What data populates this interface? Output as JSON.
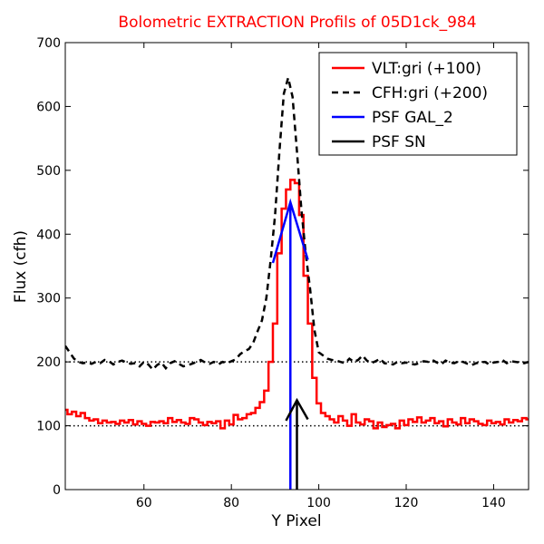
{
  "chart_data": {
    "type": "line",
    "title": "Bolometric EXTRACTION Profils of 05D1ck_984",
    "title_color": "#ff0000",
    "xlabel": "Y Pixel",
    "ylabel": "Flux (cfh)",
    "xlim": [
      42,
      148
    ],
    "ylim": [
      0,
      700
    ],
    "xticks": [
      60,
      80,
      100,
      120,
      140
    ],
    "yticks": [
      0,
      100,
      200,
      300,
      400,
      500,
      600,
      700
    ],
    "grid": false,
    "legend_position": "top-right",
    "reference_lines": [
      {
        "y": 100,
        "style": "dotted",
        "color": "#000000"
      },
      {
        "y": 200,
        "style": "dotted",
        "color": "#000000"
      }
    ],
    "series": [
      {
        "name": "VLT:gri (+100)",
        "color": "#ff0000",
        "style": "steps",
        "x": [
          42,
          43,
          44,
          45,
          46,
          47,
          48,
          49,
          50,
          51,
          52,
          53,
          54,
          55,
          56,
          57,
          58,
          59,
          60,
          61,
          62,
          63,
          64,
          65,
          66,
          67,
          68,
          69,
          70,
          71,
          72,
          73,
          74,
          75,
          76,
          77,
          78,
          79,
          80,
          81,
          82,
          83,
          84,
          85,
          86,
          87,
          88,
          89,
          90,
          91,
          92,
          93,
          94,
          95,
          96,
          97,
          98,
          99,
          100,
          101,
          102,
          103,
          104,
          105,
          106,
          107,
          108,
          109,
          110,
          111,
          112,
          113,
          114,
          115,
          116,
          117,
          118,
          119,
          120,
          121,
          122,
          123,
          124,
          125,
          126,
          127,
          128,
          129,
          130,
          131,
          132,
          133,
          134,
          135,
          136,
          137,
          138,
          139,
          140,
          141,
          142,
          143,
          144,
          145,
          146,
          147,
          148
        ],
        "y": [
          125,
          118,
          122,
          115,
          120,
          112,
          108,
          110,
          104,
          108,
          105,
          106,
          103,
          108,
          105,
          109,
          102,
          107,
          103,
          100,
          106,
          105,
          107,
          104,
          112,
          106,
          109,
          105,
          103,
          112,
          110,
          105,
          101,
          106,
          104,
          107,
          96,
          108,
          102,
          117,
          110,
          112,
          118,
          120,
          128,
          137,
          155,
          200,
          260,
          370,
          440,
          470,
          485,
          480,
          430,
          335,
          260,
          175,
          135,
          120,
          115,
          110,
          105,
          115,
          108,
          100,
          118,
          105,
          102,
          110,
          107,
          96,
          105,
          98,
          101,
          103,
          96,
          108,
          101,
          110,
          106,
          113,
          105,
          108,
          112,
          104,
          107,
          99,
          110,
          105,
          102,
          112,
          104,
          110,
          107,
          103,
          101,
          108,
          104,
          106,
          102,
          110,
          105,
          109,
          107,
          112,
          110
        ]
      },
      {
        "name": "CFH:gri (+200)",
        "color": "#000000",
        "style": "dashed",
        "x": [
          42,
          43,
          44,
          45,
          46,
          47,
          48,
          49,
          50,
          51,
          52,
          53,
          54,
          55,
          56,
          57,
          58,
          59,
          60,
          61,
          62,
          63,
          64,
          65,
          66,
          67,
          68,
          69,
          70,
          71,
          72,
          73,
          74,
          75,
          76,
          77,
          78,
          79,
          80,
          81,
          82,
          83,
          84,
          85,
          86,
          87,
          88,
          89,
          90,
          91,
          92,
          93,
          94,
          95,
          96,
          97,
          98,
          99,
          100,
          101,
          102,
          103,
          104,
          105,
          106,
          107,
          108,
          109,
          110,
          111,
          112,
          113,
          114,
          115,
          116,
          117,
          118,
          119,
          120,
          121,
          122,
          123,
          124,
          125,
          126,
          127,
          128,
          129,
          130,
          131,
          132,
          133,
          134,
          135,
          136,
          137,
          138,
          139,
          140,
          141,
          142,
          143,
          144,
          145,
          146,
          147,
          148
        ],
        "y": [
          225,
          215,
          205,
          200,
          198,
          199,
          197,
          200,
          198,
          203,
          201,
          196,
          200,
          202,
          199,
          197,
          198,
          193,
          200,
          196,
          188,
          195,
          199,
          190,
          198,
          201,
          197,
          193,
          195,
          197,
          200,
          203,
          199,
          197,
          200,
          196,
          200,
          198,
          201,
          204,
          212,
          217,
          220,
          230,
          248,
          265,
          300,
          360,
          430,
          530,
          620,
          645,
          615,
          530,
          440,
          370,
          315,
          250,
          215,
          210,
          205,
          203,
          202,
          200,
          198,
          205,
          200,
          203,
          210,
          202,
          198,
          201,
          205,
          198,
          197,
          196,
          200,
          198,
          199,
          197,
          196,
          198,
          201,
          200,
          203,
          199,
          196,
          202,
          199,
          198,
          201,
          200,
          197,
          195,
          198,
          199,
          200,
          196,
          199,
          200,
          203,
          198,
          201,
          200,
          199,
          198,
          200
        ]
      },
      {
        "name": "PSF GAL_2",
        "color": "#0000ff",
        "style": "solid",
        "x": [
          89.5,
          93.5,
          97.5
        ],
        "y": [
          355,
          450,
          360
        ],
        "vertical_x": 93.5
      },
      {
        "name": "PSF SN",
        "color": "#000000",
        "style": "solid",
        "x": [
          92.5,
          95,
          97.5
        ],
        "y": [
          108,
          140,
          110
        ],
        "vertical_x": 95
      }
    ]
  }
}
